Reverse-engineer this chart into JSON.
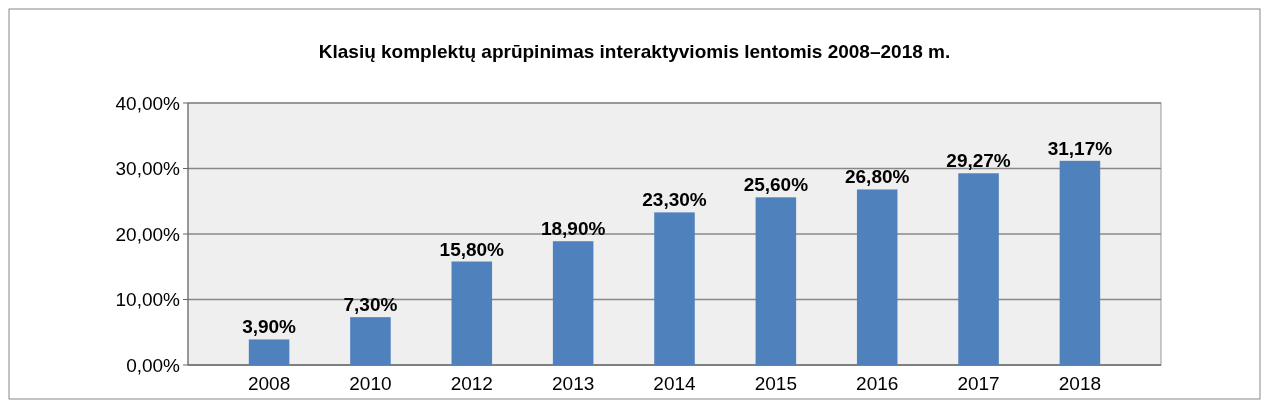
{
  "chart_data": {
    "type": "bar",
    "title": "Klasių komplektų aprūpinimas interaktyviomis lentomis 2008–2018 m.",
    "categories": [
      "2008",
      "2010",
      "2012",
      "2013",
      "2014",
      "2015",
      "2016",
      "2017",
      "2018"
    ],
    "values": [
      3.9,
      7.3,
      15.8,
      18.9,
      23.3,
      25.6,
      26.8,
      29.27,
      31.17
    ],
    "value_labels": [
      "3,90%",
      "7,30%",
      "15,80%",
      "18,90%",
      "23,30%",
      "25,60%",
      "26,80%",
      "29,27%",
      "31,17%"
    ],
    "color": "#4f81bd",
    "ylim": [
      0,
      40
    ],
    "yticks": [
      {
        "value": 0,
        "label": "0,00%"
      },
      {
        "value": 10,
        "label": "10,00%"
      },
      {
        "value": 20,
        "label": "20,00%"
      },
      {
        "value": 30,
        "label": "30,00%"
      },
      {
        "value": 40,
        "label": "40,00%"
      }
    ],
    "grid": "y"
  }
}
